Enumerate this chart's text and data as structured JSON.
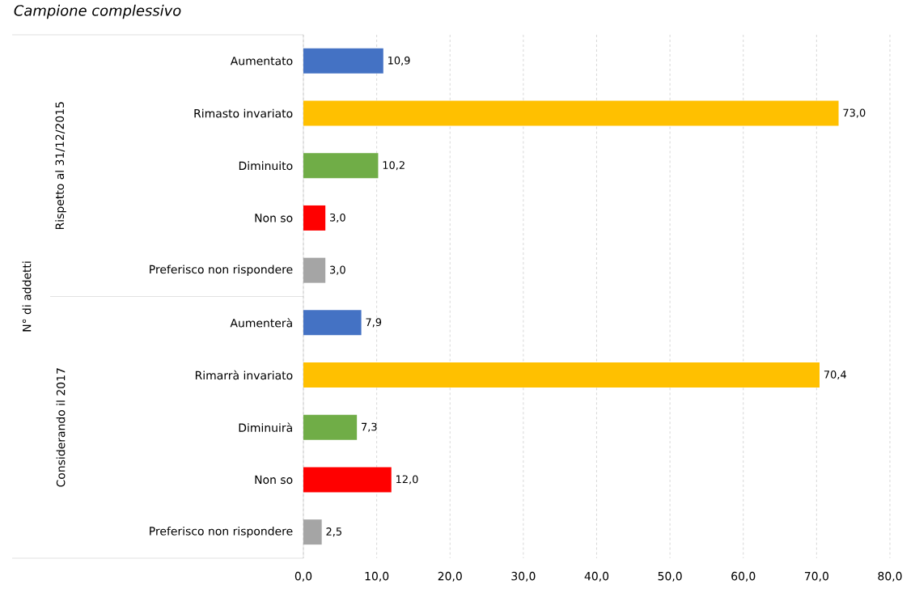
{
  "chart_data": {
    "type": "bar",
    "orientation": "horizontal",
    "title": "Campione complessivo",
    "annotations": [
      "N° di addetti",
      "Rispetto al 31/12/2015",
      "Considerando il 2017"
    ],
    "categories": [
      "Aumentato",
      "Rimasto invariato",
      "Diminuito",
      "Non so",
      "Preferisco non rispondere",
      "Aumenterà",
      "Rimarrà invariato",
      "Diminuirà",
      "Non so",
      "Preferisco non rispondere"
    ],
    "values": [
      10.9,
      73.0,
      10.2,
      3.0,
      3.0,
      7.9,
      70.4,
      7.3,
      12.0,
      2.5
    ],
    "value_labels": [
      "10,9",
      "73,0",
      "10,2",
      "3,0",
      "3,0",
      "7,9",
      "70,4",
      "7,3",
      "12,0",
      "2,5"
    ],
    "colors": [
      "#4472c4",
      "#ffc000",
      "#70ad47",
      "#ff0000",
      "#a5a5a5",
      "#4472c4",
      "#ffc000",
      "#70ad47",
      "#ff0000",
      "#a5a5a5"
    ],
    "xlim": [
      0,
      80
    ],
    "xticks": [
      {
        "value": 0,
        "label": "0,0"
      },
      {
        "value": 10,
        "label": "10,0"
      },
      {
        "value": 20,
        "label": "20,0"
      },
      {
        "value": 30,
        "label": "30,0"
      },
      {
        "value": 40,
        "label": "40,0"
      },
      {
        "value": 50,
        "label": "50,0"
      },
      {
        "value": 60,
        "label": "60,0"
      },
      {
        "value": 70,
        "label": "70,0"
      },
      {
        "value": 80,
        "label": "80,0"
      }
    ],
    "grid": "x",
    "legend": false
  }
}
